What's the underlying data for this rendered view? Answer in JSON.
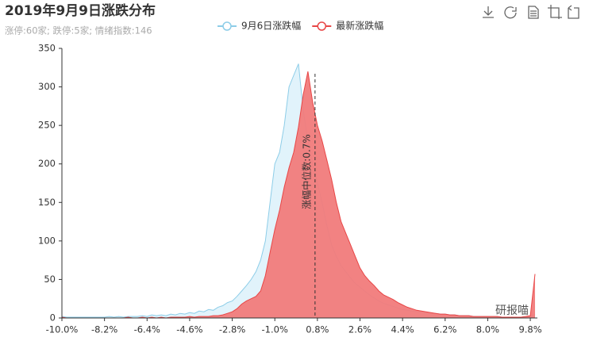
{
  "chart_data": {
    "type": "area",
    "title": "2019年9月9日涨跌分布",
    "subtitle": "涨停:60家; 跌停:5家; 情绪指数:146",
    "watermark": "研报喵",
    "x": [
      -10,
      -9.8,
      -9.6,
      -9.4,
      -9.2,
      -9,
      -8.8,
      -8.6,
      -8.4,
      -8.2,
      -8,
      -7.8,
      -7.6,
      -7.4,
      -7.2,
      -7,
      -6.8,
      -6.6,
      -6.4,
      -6.2,
      -6,
      -5.8,
      -5.6,
      -5.4,
      -5.2,
      -5,
      -4.8,
      -4.6,
      -4.4,
      -4.2,
      -4,
      -3.8,
      -3.6,
      -3.4,
      -3.2,
      -3,
      -2.8,
      -2.6,
      -2.4,
      -2.2,
      -2,
      -1.8,
      -1.6,
      -1.4,
      -1.2,
      -1,
      -0.8,
      -0.6,
      -0.4,
      -0.2,
      0,
      0.2,
      0.4,
      0.6,
      0.8,
      1,
      1.2,
      1.4,
      1.6,
      1.8,
      2,
      2.2,
      2.4,
      2.6,
      2.8,
      3,
      3.2,
      3.4,
      3.6,
      3.8,
      4,
      4.2,
      4.4,
      4.6,
      4.8,
      5,
      5.2,
      5.4,
      5.6,
      5.8,
      6,
      6.2,
      6.4,
      6.6,
      6.8,
      7,
      7.2,
      7.4,
      7.6,
      7.8,
      8,
      8.2,
      8.4,
      8.6,
      8.8,
      9,
      9.2,
      9.4,
      9.6,
      9.8,
      10
    ],
    "series": [
      {
        "name": "9月6日涨跌幅",
        "color": "#8dcde8",
        "fill": "#e1f3fb",
        "values": [
          2,
          1,
          1,
          1,
          1,
          1,
          1,
          1,
          1,
          1,
          2,
          1,
          2,
          1,
          2,
          2,
          2,
          3,
          2,
          4,
          3,
          4,
          3,
          5,
          4,
          6,
          5,
          7,
          6,
          9,
          8,
          11,
          10,
          14,
          16,
          20,
          22,
          28,
          35,
          42,
          50,
          60,
          75,
          100,
          150,
          200,
          215,
          250,
          300,
          315,
          330,
          270,
          230,
          200,
          175,
          150,
          120,
          95,
          80,
          68,
          60,
          52,
          45,
          40,
          35,
          30,
          26,
          22,
          19,
          17,
          15,
          13,
          11,
          10,
          9,
          8,
          7,
          7,
          6,
          6,
          5,
          5,
          4,
          4,
          3,
          3,
          3,
          2,
          2,
          2,
          2,
          2,
          2,
          1,
          1,
          1,
          1,
          1,
          1,
          2,
          5
        ]
      },
      {
        "name": "最新涨跌幅",
        "color": "#e84646",
        "fill": "#f17b7b",
        "values": [
          1,
          0,
          0,
          0,
          0,
          0,
          0,
          0,
          0,
          0,
          0,
          0,
          0,
          0,
          1,
          0,
          0,
          1,
          0,
          1,
          0,
          1,
          0,
          1,
          1,
          1,
          1,
          2,
          1,
          2,
          2,
          2,
          3,
          3,
          4,
          6,
          8,
          12,
          18,
          22,
          25,
          28,
          35,
          55,
          85,
          115,
          140,
          170,
          195,
          215,
          248,
          290,
          320,
          280,
          250,
          230,
          205,
          180,
          150,
          125,
          110,
          95,
          80,
          65,
          55,
          48,
          42,
          35,
          30,
          27,
          24,
          20,
          17,
          14,
          12,
          10,
          9,
          8,
          7,
          6,
          5,
          5,
          4,
          4,
          3,
          3,
          3,
          2,
          2,
          2,
          2,
          2,
          2,
          1,
          1,
          1,
          1,
          1,
          2,
          3,
          57
        ]
      }
    ],
    "median": {
      "value": 0.7,
      "label": "涨幅中位数:0.7%"
    },
    "xlim": [
      -10,
      10.1
    ],
    "xticks": [
      {
        "value": -10,
        "label": "-10.0%"
      },
      {
        "value": -8.2,
        "label": "-8.2%"
      },
      {
        "value": -6.4,
        "label": "-6.4%"
      },
      {
        "value": -4.6,
        "label": "-4.6%"
      },
      {
        "value": -2.8,
        "label": "-2.8%"
      },
      {
        "value": -1,
        "label": "-1.0%"
      },
      {
        "value": 0.8,
        "label": "0.8%"
      },
      {
        "value": 2.6,
        "label": "2.6%"
      },
      {
        "value": 4.4,
        "label": "4.4%"
      },
      {
        "value": 6.2,
        "label": "6.2%"
      },
      {
        "value": 8,
        "label": "8.0%"
      },
      {
        "value": 9.8,
        "label": "9.8%"
      }
    ],
    "ylim": [
      0,
      350
    ],
    "yticks": [
      0,
      50,
      100,
      150,
      200,
      250,
      300,
      350
    ]
  }
}
